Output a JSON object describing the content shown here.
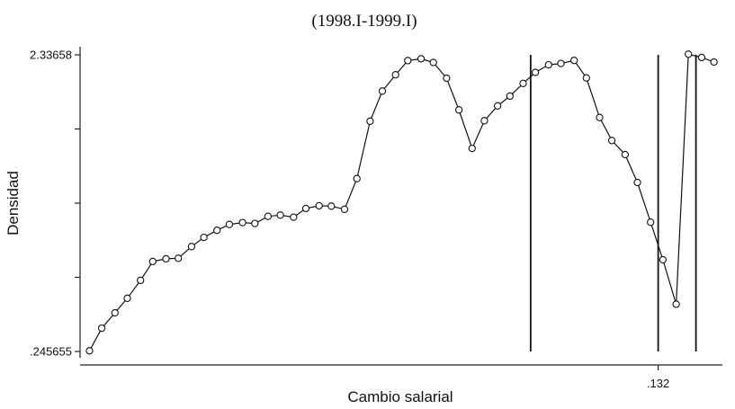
{
  "chart_data": {
    "type": "line",
    "title": "(1998.I-1999.I)",
    "xlabel": "Cambio salarial",
    "ylabel": "Densidad",
    "ylim": [
      0.245655,
      2.33658
    ],
    "y_tick_values": [
      0.245655,
      0.768388,
      1.29112,
      1.81385,
      2.33658
    ],
    "y_tick_labels": [
      ".245655",
      "",
      "",
      "",
      "2.33658"
    ],
    "xlim": [
      -0.48,
      0.2
    ],
    "x_tick_values": [
      0.132
    ],
    "x_tick_labels": [
      ".132"
    ],
    "grid": false,
    "vertical_lines_x": [
      -0.003,
      0.132,
      0.172
    ],
    "series": [
      {
        "marker": "hollow-circle",
        "x": [
          -0.47,
          -0.457,
          -0.443,
          -0.43,
          -0.416,
          -0.403,
          -0.389,
          -0.376,
          -0.362,
          -0.349,
          -0.335,
          -0.322,
          -0.308,
          -0.295,
          -0.281,
          -0.268,
          -0.254,
          -0.241,
          -0.227,
          -0.214,
          -0.2,
          -0.187,
          -0.173,
          -0.16,
          -0.146,
          -0.133,
          -0.119,
          -0.106,
          -0.092,
          -0.079,
          -0.065,
          -0.052,
          -0.038,
          -0.025,
          -0.011,
          0.002,
          0.016,
          0.029,
          0.043,
          0.056,
          0.07,
          0.083,
          0.097,
          0.11,
          0.124,
          0.137,
          0.151,
          0.164,
          0.178,
          0.191
        ],
        "y": [
          0.25,
          0.41,
          0.518,
          0.621,
          0.747,
          0.88,
          0.899,
          0.903,
          0.985,
          1.05,
          1.1,
          1.141,
          1.154,
          1.148,
          1.198,
          1.207,
          1.192,
          1.254,
          1.273,
          1.27,
          1.248,
          1.464,
          1.869,
          2.081,
          2.196,
          2.296,
          2.309,
          2.283,
          2.172,
          1.948,
          1.677,
          1.872,
          1.977,
          2.046,
          2.135,
          2.213,
          2.266,
          2.276,
          2.297,
          2.174,
          1.895,
          1.733,
          1.633,
          1.437,
          1.157,
          0.892,
          0.579,
          2.341,
          2.318,
          2.286
        ]
      }
    ]
  }
}
